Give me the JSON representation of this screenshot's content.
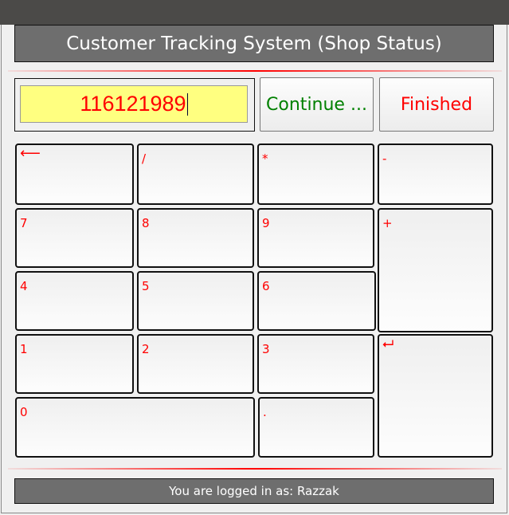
{
  "header": {
    "title": "Customer Tracking System (Shop Status)"
  },
  "entry": {
    "value": "116121989"
  },
  "actions": {
    "continue_label": "Continue ...",
    "finished_label": "Finished",
    "continue_color": "#008000",
    "finished_color": "#ff0000"
  },
  "keypad": {
    "backspace": "⟵",
    "divide": "/",
    "multiply": "*",
    "minus": "-",
    "k7": "7",
    "k8": "8",
    "k9": "9",
    "plus": "+",
    "k4": "4",
    "k5": "5",
    "k6": "6",
    "k1": "1",
    "k2": "2",
    "k3": "3",
    "enter": "⮠",
    "k0": "0",
    "dot": "."
  },
  "status": {
    "text": "You are logged in as: Razzak"
  }
}
